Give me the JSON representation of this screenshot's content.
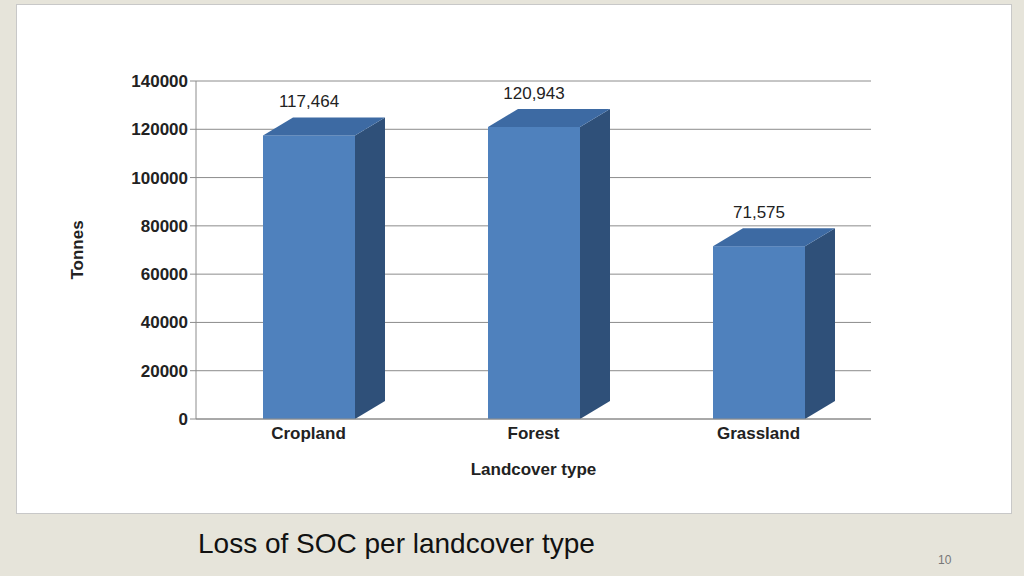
{
  "chart_data": {
    "type": "bar",
    "title": "Loss of SOC per landcover type",
    "annotations": [
      "10"
    ],
    "x_label": "Landcover type",
    "y_label": "Tonnes",
    "categories": [
      "Cropland",
      "Forest",
      "Grassland"
    ],
    "values": [
      117464,
      120943,
      71575
    ],
    "value_labels": [
      "117,464",
      "120,943",
      "71,575"
    ],
    "color": "#4f81bd",
    "ylim": [
      0,
      140000
    ],
    "yticks": [
      0,
      20000,
      40000,
      60000,
      80000,
      100000,
      120000,
      140000
    ],
    "grid": true,
    "data_labels": true
  }
}
